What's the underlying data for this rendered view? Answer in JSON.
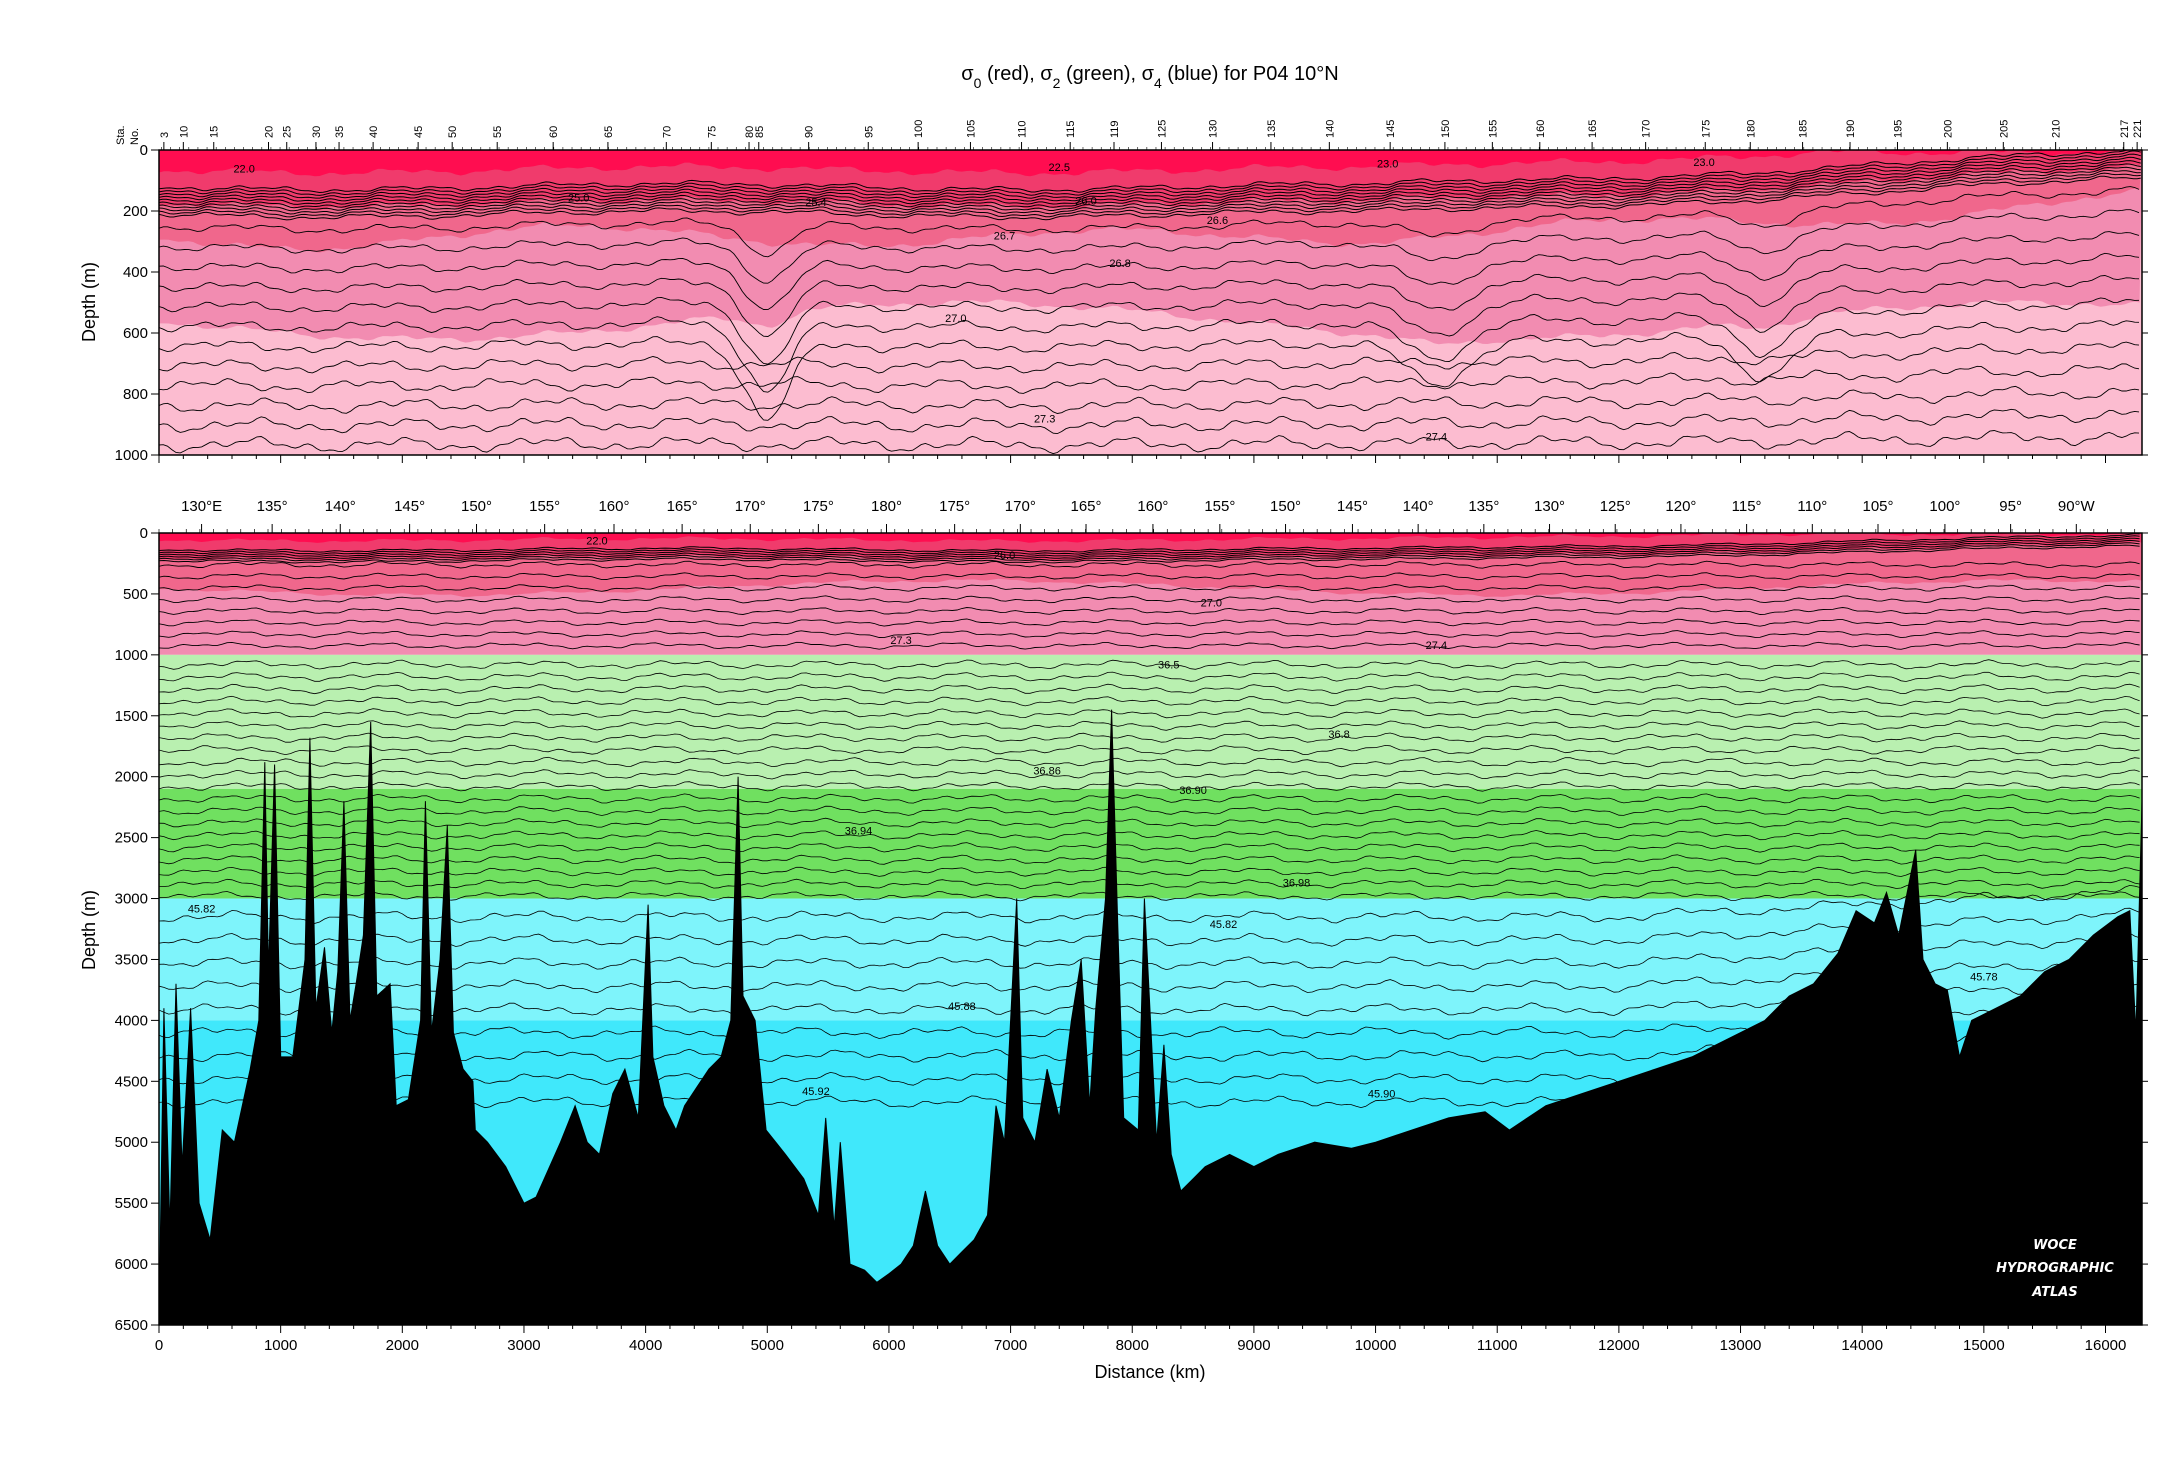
{
  "chart_data": [
    {
      "type": "heatmap",
      "panel": "top",
      "title": "σ0 (red), σ2 (green), σ4 (blue) for P04 10°N",
      "station_label_line1": "Sta.",
      "station_label_line2": "No.",
      "ylabel": "Depth (m)",
      "ylim": [
        0,
        1000
      ],
      "xlim": [
        0,
        16300
      ],
      "y_ticks": [
        "0",
        "200",
        "400",
        "600",
        "800",
        "1000"
      ],
      "stations": [
        "3",
        "10",
        "15",
        "20",
        "25",
        "30",
        "35",
        "40",
        "45",
        "50",
        "55",
        "60",
        "65",
        "70",
        "75",
        "80",
        "85",
        "90",
        "95",
        "100",
        "105",
        "110",
        "115",
        "119",
        "125",
        "130",
        "135",
        "140",
        "145",
        "150",
        "155",
        "160",
        "165",
        "170",
        "175",
        "180",
        "185",
        "190",
        "195",
        "200",
        "205",
        "210",
        "217",
        "221"
      ],
      "station_km": [
        40,
        200,
        450,
        900,
        1050,
        1290,
        1480,
        1760,
        2130,
        2410,
        2780,
        3240,
        3690,
        4170,
        4540,
        4850,
        4930,
        5340,
        5830,
        6240,
        6670,
        7090,
        7490,
        7850,
        8240,
        8660,
        9140,
        9620,
        10120,
        10570,
        10960,
        11350,
        11780,
        12220,
        12710,
        13080,
        13510,
        13900,
        14290,
        14700,
        15160,
        15590,
        16150,
        16260
      ],
      "contour_labels": [
        {
          "text": "22.0",
          "x": 700,
          "y": 60
        },
        {
          "text": "22.5",
          "x": 7400,
          "y": 55
        },
        {
          "text": "23.0",
          "x": 10100,
          "y": 45
        },
        {
          "text": "23.0",
          "x": 12700,
          "y": 40
        },
        {
          "text": "25.0",
          "x": 3450,
          "y": 155
        },
        {
          "text": "25.4",
          "x": 5400,
          "y": 170
        },
        {
          "text": "26.0",
          "x": 7620,
          "y": 165
        },
        {
          "text": "26.6",
          "x": 8700,
          "y": 230
        },
        {
          "text": "26.7",
          "x": 6950,
          "y": 280
        },
        {
          "text": "26.8",
          "x": 7900,
          "y": 370
        },
        {
          "text": "27.0",
          "x": 6550,
          "y": 550
        },
        {
          "text": "27.3",
          "x": 7280,
          "y": 880
        },
        {
          "text": "27.4",
          "x": 10500,
          "y": 940
        }
      ]
    },
    {
      "type": "heatmap",
      "panel": "bottom",
      "xlabel": "Distance (km)",
      "ylabel": "Depth (m)",
      "xlim": [
        0,
        16300
      ],
      "ylim": [
        0,
        6500
      ],
      "x_ticks": [
        "0",
        "1000",
        "2000",
        "3000",
        "4000",
        "5000",
        "6000",
        "7000",
        "8000",
        "9000",
        "10000",
        "11000",
        "12000",
        "13000",
        "14000",
        "15000",
        "16000"
      ],
      "y_ticks": [
        "0",
        "500",
        "1000",
        "1500",
        "2000",
        "2500",
        "3000",
        "3500",
        "4000",
        "4500",
        "5000",
        "5500",
        "6000",
        "6500"
      ],
      "lon_labels": [
        "130°E",
        "135°",
        "140°",
        "145°",
        "150°",
        "155°",
        "160°",
        "165°",
        "170°",
        "175°",
        "180°",
        "175°",
        "170°",
        "165°",
        "160°",
        "155°",
        "150°",
        "145°",
        "140°",
        "135°",
        "130°",
        "125°",
        "120°",
        "115°",
        "110°",
        "105°",
        "100°",
        "95°",
        "90°W"
      ],
      "lon_km": [
        350,
        930,
        1490,
        2060,
        2610,
        3170,
        3740,
        4300,
        4860,
        5420,
        5980,
        6540,
        7080,
        7620,
        8170,
        8720,
        9260,
        9810,
        10350,
        10890,
        11430,
        11970,
        12510,
        13050,
        13590,
        14130,
        14680,
        15220,
        15760
      ],
      "layers": [
        {
          "from": 0,
          "to": 1000,
          "sigma": "σ0",
          "color": "#f28cb1"
        },
        {
          "from": 1000,
          "to": 2100,
          "sigma": "σ2",
          "color": "#b9f0b0"
        },
        {
          "from": 2100,
          "to": 3000,
          "sigma": "σ2",
          "color": "#70e060"
        },
        {
          "from": 3000,
          "to": 4000,
          "sigma": "σ4",
          "color": "#7ef4fb"
        },
        {
          "from": 4000,
          "to": 6500,
          "sigma": "σ4",
          "color": "#40e8fb"
        }
      ],
      "contour_labels": [
        {
          "text": "22.0",
          "x": 3600,
          "y": 60
        },
        {
          "text": "26.0",
          "x": 6950,
          "y": 180
        },
        {
          "text": "27.0",
          "x": 8650,
          "y": 570
        },
        {
          "text": "27.3",
          "x": 6100,
          "y": 880
        },
        {
          "text": "27.4",
          "x": 10500,
          "y": 920
        },
        {
          "text": "36.5",
          "x": 8300,
          "y": 1080
        },
        {
          "text": "36.8",
          "x": 9700,
          "y": 1650
        },
        {
          "text": "36.86",
          "x": 7300,
          "y": 1950
        },
        {
          "text": "36.90",
          "x": 8500,
          "y": 2110
        },
        {
          "text": "36.94",
          "x": 5750,
          "y": 2440
        },
        {
          "text": "36.98",
          "x": 9350,
          "y": 2870
        },
        {
          "text": "45.82",
          "x": 350,
          "y": 3080
        },
        {
          "text": "45.82",
          "x": 8750,
          "y": 3210
        },
        {
          "text": "45.78",
          "x": 15000,
          "y": 3640
        },
        {
          "text": "45.88",
          "x": 6600,
          "y": 3880
        },
        {
          "text": "45.92",
          "x": 5400,
          "y": 4580
        },
        {
          "text": "45.90",
          "x": 10050,
          "y": 4600
        }
      ],
      "watermark": [
        "WOCE",
        "HYDROGRAPHIC",
        "ATLAS"
      ]
    }
  ],
  "colors": {
    "sigma0": [
      "#ff0d50",
      "#f03b6c",
      "#f0678c",
      "#f28cb1",
      "#fcbcd0"
    ],
    "sigma2": [
      "#b9f0b0",
      "#70e060"
    ],
    "sigma4": [
      "#7ef4fb",
      "#40e8fb"
    ],
    "bathymetry": "#000000"
  }
}
